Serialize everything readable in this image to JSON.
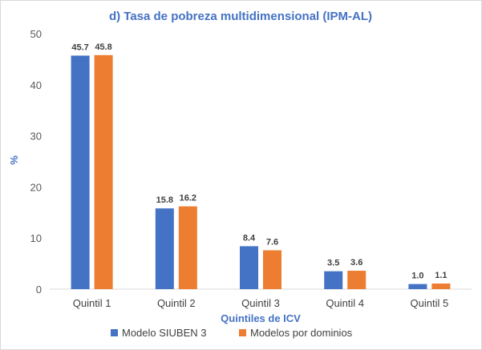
{
  "chart_data": {
    "type": "bar",
    "title": "d) Tasa de pobreza multidimensional (IPM-AL)",
    "xlabel": "Quintiles de ICV",
    "ylabel": "%",
    "ylim": [
      0,
      50
    ],
    "yticks": [
      0,
      10,
      20,
      30,
      40,
      50
    ],
    "categories": [
      "Quintil 1",
      "Quintil 2",
      "Quintil 3",
      "Quintil 4",
      "Quintil 5"
    ],
    "series": [
      {
        "name": "Modelo SIUBEN 3",
        "color": "#4472c4",
        "values": [
          45.7,
          15.8,
          8.4,
          3.5,
          1.0
        ],
        "labels": [
          "45.7",
          "15.8",
          "8.4",
          "3.5",
          "1.0"
        ]
      },
      {
        "name": "Modelos por dominios",
        "color": "#ed7d31",
        "values": [
          45.8,
          16.2,
          7.6,
          3.6,
          1.1
        ],
        "labels": [
          "45.8",
          "16.2",
          "7.6",
          "3.6",
          "1.1"
        ]
      }
    ],
    "grid": false,
    "legend": "bottom"
  }
}
